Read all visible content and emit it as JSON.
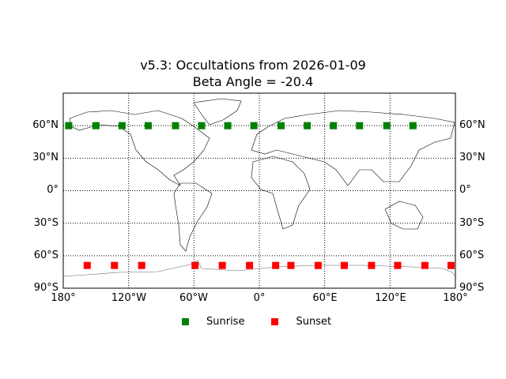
{
  "chart_data": {
    "type": "scatter",
    "title": "v5.3: Occultations from 2026-01-09",
    "subtitle": "Beta Angle = -20.4",
    "xlabel": "",
    "ylabel": "",
    "xlim": [
      -180,
      180
    ],
    "ylim": [
      -90,
      90
    ],
    "grid": true,
    "background": "world map (coastlines, country borders)",
    "x_ticks": [
      "180°",
      "120°W",
      "60°W",
      "0°",
      "60°E",
      "120°E",
      "180°"
    ],
    "y_ticks": [
      "90°S",
      "60°S",
      "30°S",
      "0°",
      "30°N",
      "60°N"
    ],
    "legend_position": "bottom center",
    "series": [
      {
        "name": "Sunrise",
        "color": "#008000",
        "marker": "square",
        "lon": [
          -175,
          -150,
          -126,
          -102,
          -77,
          -53,
          -29,
          -5,
          20,
          44,
          68,
          92,
          117,
          141
        ],
        "lat": [
          60,
          60,
          60,
          60,
          60,
          60,
          60,
          60,
          60,
          60,
          60,
          60,
          60,
          60
        ]
      },
      {
        "name": "Sunset",
        "color": "#ff0000",
        "marker": "square",
        "lon": [
          -158,
          -133,
          -108,
          -59,
          -34,
          -9,
          15,
          29,
          54,
          78,
          103,
          127,
          152,
          176
        ],
        "lat": [
          -69,
          -69,
          -69,
          -69,
          -69,
          -69,
          -69,
          -69,
          -69,
          -69,
          -69,
          -69,
          -69,
          -69
        ]
      }
    ]
  },
  "title": {
    "line1": "v5.3: Occultations from 2026-01-09",
    "line2": "Beta Angle = -20.4"
  },
  "axes": {
    "y_left": [
      "60°N",
      "30°N",
      "0°",
      "30°S",
      "60°S",
      "90°S"
    ],
    "y_right": [
      "60°N",
      "30°N",
      "0°",
      "30°S",
      "60°S",
      "90°S"
    ],
    "x": [
      "180°",
      "120°W",
      "60°W",
      "0°",
      "60°E",
      "120°E",
      "180°"
    ]
  },
  "legend": {
    "sunrise": "Sunrise",
    "sunset": "Sunset"
  }
}
